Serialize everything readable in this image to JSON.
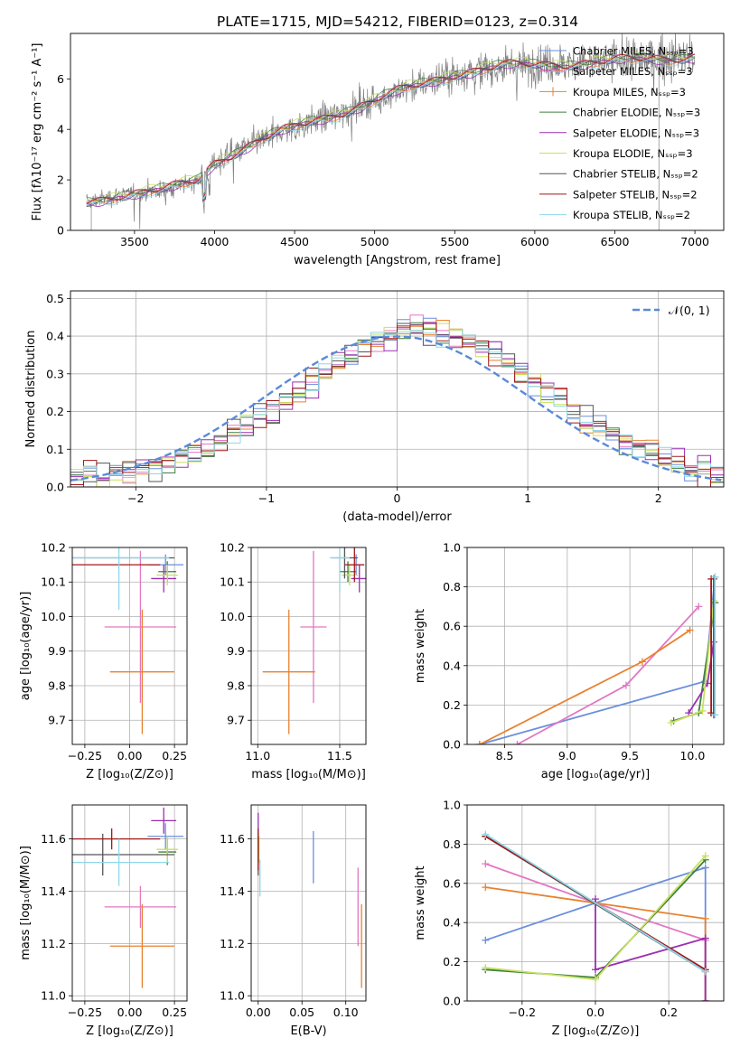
{
  "title": "PLATE=1715, MJD=54212, FIBERID=0123, z=0.314",
  "colors": {
    "chabrier_miles": "#6a8fdc",
    "salpeter_miles": "#e377c2",
    "kroupa_miles": "#e8822f",
    "chabrier_elodie": "#3f7f3f",
    "salpeter_elodie": "#9a2fb0",
    "kroupa_elodie": "#c8e060",
    "chabrier_stelib": "#555555",
    "salpeter_stelib": "#a01818",
    "kroupa_stelib": "#8ed7e8",
    "data": "#808080",
    "normal": "#5b8ad8"
  },
  "chart_data": [
    {
      "type": "line",
      "name": "spectrum",
      "xlabel": "wavelength [Angstrom, rest frame]",
      "ylabel": "Flux [fλ10⁻¹⁷ erg cm⁻² s⁻¹ A⁻¹]",
      "xlim": [
        3100,
        7180
      ],
      "ylim": [
        0,
        7.8
      ],
      "xticks": [
        3500,
        4000,
        4500,
        5000,
        5500,
        6000,
        6500,
        7000
      ],
      "yticks": [
        0,
        2,
        4,
        6
      ],
      "legend_position": "right",
      "legend": [
        {
          "label": "Chabrier MILES, Nₛₛₚ=3",
          "color": "chabrier_miles"
        },
        {
          "label": "Salpeter MILES, Nₛₛₚ=3",
          "color": "salpeter_miles"
        },
        {
          "label": "Kroupa MILES, Nₛₛₚ=3",
          "color": "kroupa_miles"
        },
        {
          "label": "Chabrier ELODIE, Nₛₛₚ=3",
          "color": "chabrier_elodie"
        },
        {
          "label": "Salpeter ELODIE, Nₛₛₚ=3",
          "color": "salpeter_elodie"
        },
        {
          "label": "Kroupa ELODIE, Nₛₛₚ=3",
          "color": "kroupa_elodie"
        },
        {
          "label": "Chabrier STELIB, Nₛₛₚ=2",
          "color": "chabrier_stelib"
        },
        {
          "label": "Salpeter STELIB, Nₛₛₚ=2",
          "color": "salpeter_stelib"
        },
        {
          "label": "Kroupa STELIB, Nₛₛₚ=2",
          "color": "kroupa_stelib"
        }
      ],
      "continuum": [
        [
          3200,
          1.1
        ],
        [
          3400,
          1.4
        ],
        [
          3700,
          1.6
        ],
        [
          3900,
          2.0
        ],
        [
          4000,
          2.7
        ],
        [
          4300,
          3.6
        ],
        [
          4600,
          4.3
        ],
        [
          4900,
          4.9
        ],
        [
          5200,
          5.6
        ],
        [
          5500,
          6.2
        ],
        [
          5800,
          6.5
        ],
        [
          6200,
          6.6
        ],
        [
          6500,
          6.7
        ],
        [
          6800,
          6.8
        ],
        [
          7000,
          6.9
        ]
      ],
      "model_offsets": [
        0,
        0.05,
        -0.05,
        0.08,
        -0.08,
        0.12,
        -0.03,
        0.03,
        -0.12
      ]
    },
    {
      "type": "bar",
      "name": "residual_histogram",
      "xlabel": "(data-model)/error",
      "ylabel": "Normed distribution",
      "xlim": [
        -2.5,
        2.5
      ],
      "ylim": [
        0,
        0.52
      ],
      "xticks": [
        -2,
        -1,
        0,
        1,
        2
      ],
      "yticks": [
        0.0,
        0.1,
        0.2,
        0.3,
        0.4,
        0.5
      ],
      "legend_position": "top-right",
      "legend": [
        {
          "label": "𝒩(0, 1)",
          "color": "normal"
        }
      ],
      "bin_width": 0.1,
      "n_series": 9
    },
    {
      "type": "scatter",
      "name": "age_vs_Z",
      "xlabel": "Z [log₁₀(Z/Z⊙)]",
      "ylabel": "age  [log₁₀(age/yr)]",
      "xlim": [
        -0.32,
        0.32
      ],
      "ylim": [
        9.63,
        10.2
      ],
      "xticks": [
        -0.25,
        0.0,
        0.25
      ],
      "yticks": [
        9.7,
        9.8,
        9.9,
        10.0,
        10.1,
        10.2
      ],
      "points": [
        {
          "color": "chabrier_miles",
          "x": 0.2,
          "xerr": 0.1,
          "y": 10.15,
          "yerr": 0.03
        },
        {
          "color": "salpeter_miles",
          "x": 0.06,
          "xerr": 0.2,
          "y": 9.97,
          "yerr": 0.22
        },
        {
          "color": "kroupa_miles",
          "x": 0.07,
          "xerr": 0.18,
          "y": 9.84,
          "yerr": 0.18
        },
        {
          "color": "chabrier_elodie",
          "x": 0.21,
          "xerr": 0.05,
          "y": 10.13,
          "yerr": 0.03
        },
        {
          "color": "salpeter_elodie",
          "x": 0.19,
          "xerr": 0.07,
          "y": 10.11,
          "yerr": 0.04
        },
        {
          "color": "kroupa_elodie",
          "x": 0.21,
          "xerr": 0.06,
          "y": 10.12,
          "yerr": 0.03
        },
        {
          "color": "chabrier_stelib",
          "x": -0.15,
          "xerr": 0.4,
          "y": 10.17,
          "yerr": 0.0
        },
        {
          "color": "salpeter_stelib",
          "x": -0.1,
          "xerr": 0.27,
          "y": 10.15,
          "yerr": 0.0
        },
        {
          "color": "kroupa_stelib",
          "x": -0.06,
          "xerr": 0.28,
          "y": 10.17,
          "yerr": 0.15
        }
      ]
    },
    {
      "type": "scatter",
      "name": "age_vs_mass",
      "xlabel": "mass [log₁₀(M/M⊙)]",
      "ylabel": "",
      "xlim": [
        10.96,
        11.66
      ],
      "ylim": [
        9.63,
        10.2
      ],
      "xticks": [
        11.0,
        11.5
      ],
      "yticks": [
        9.7,
        9.8,
        9.9,
        10.0,
        10.1,
        10.2
      ],
      "points": [
        {
          "color": "chabrier_miles",
          "x": 11.6,
          "xerr": 0.05,
          "y": 10.15,
          "yerr": 0.03
        },
        {
          "color": "salpeter_miles",
          "x": 11.34,
          "xerr": 0.08,
          "y": 9.97,
          "yerr": 0.22
        },
        {
          "color": "kroupa_miles",
          "x": 11.19,
          "xerr": 0.16,
          "y": 9.84,
          "yerr": 0.18
        },
        {
          "color": "chabrier_elodie",
          "x": 11.55,
          "xerr": 0.05,
          "y": 10.13,
          "yerr": 0.03
        },
        {
          "color": "salpeter_elodie",
          "x": 11.62,
          "xerr": 0.05,
          "y": 10.11,
          "yerr": 0.04
        },
        {
          "color": "kroupa_elodie",
          "x": 11.56,
          "xerr": 0.05,
          "y": 10.12,
          "yerr": 0.03
        },
        {
          "color": "chabrier_stelib",
          "x": 11.53,
          "xerr": 0.08,
          "y": 10.17,
          "yerr": 0.06
        },
        {
          "color": "salpeter_stelib",
          "x": 11.59,
          "xerr": 0.06,
          "y": 10.15,
          "yerr": 0.05
        },
        {
          "color": "kroupa_stelib",
          "x": 11.5,
          "xerr": 0.06,
          "y": 10.17,
          "yerr": 0.1
        }
      ]
    },
    {
      "type": "line",
      "name": "mass_weight_vs_age",
      "xlabel": "age  [log₁₀(age/yr)]",
      "ylabel": "mass weight",
      "xlim": [
        8.2,
        10.25
      ],
      "ylim": [
        0,
        1
      ],
      "xticks": [
        8.5,
        9.0,
        9.5,
        10.0
      ],
      "yticks": [
        0.0,
        0.2,
        0.4,
        0.6,
        0.8,
        1.0
      ],
      "series": [
        {
          "color": "chabrier_miles",
          "x": [
            8.3,
            10.1,
            10.18
          ],
          "y": [
            0.0,
            0.32,
            0.85
          ]
        },
        {
          "color": "salpeter_miles",
          "x": [
            8.6,
            9.47,
            10.05
          ],
          "y": [
            0.0,
            0.3,
            0.7
          ]
        },
        {
          "color": "kroupa_miles",
          "x": [
            8.3,
            9.6,
            9.98
          ],
          "y": [
            0.0,
            0.42,
            0.58
          ]
        },
        {
          "color": "chabrier_elodie",
          "x": [
            9.85,
            10.05,
            10.18
          ],
          "y": [
            0.12,
            0.16,
            0.72
          ]
        },
        {
          "color": "salpeter_elodie",
          "x": [
            9.97,
            10.12,
            10.17
          ],
          "y": [
            0.16,
            0.31,
            0.52
          ]
        },
        {
          "color": "kroupa_elodie",
          "x": [
            9.83,
            10.08,
            10.17
          ],
          "y": [
            0.11,
            0.17,
            0.73
          ]
        },
        {
          "color": "chabrier_stelib",
          "x": [
            10.17,
            10.17
          ],
          "y": [
            0.15,
            0.84
          ]
        },
        {
          "color": "salpeter_stelib",
          "x": [
            10.15,
            10.15
          ],
          "y": [
            0.16,
            0.84
          ]
        },
        {
          "color": "kroupa_stelib",
          "x": [
            10.18,
            10.18
          ],
          "y": [
            0.15,
            0.85
          ]
        }
      ]
    },
    {
      "type": "scatter",
      "name": "mass_vs_Z",
      "xlabel": "Z [log₁₀(Z/Z⊙)]",
      "ylabel": "mass [log₁₀(M/M⊙)]",
      "xlim": [
        -0.32,
        0.32
      ],
      "ylim": [
        10.98,
        11.73
      ],
      "xticks": [
        -0.25,
        0.0,
        0.25
      ],
      "yticks": [
        11.0,
        11.2,
        11.4,
        11.6
      ],
      "points": [
        {
          "color": "chabrier_miles",
          "x": 0.2,
          "xerr": 0.1,
          "y": 11.61,
          "yerr": 0.05
        },
        {
          "color": "salpeter_miles",
          "x": 0.06,
          "xerr": 0.2,
          "y": 11.34,
          "yerr": 0.08
        },
        {
          "color": "kroupa_miles",
          "x": 0.07,
          "xerr": 0.18,
          "y": 11.19,
          "yerr": 0.16
        },
        {
          "color": "chabrier_elodie",
          "x": 0.21,
          "xerr": 0.05,
          "y": 11.55,
          "yerr": 0.05
        },
        {
          "color": "salpeter_elodie",
          "x": 0.19,
          "xerr": 0.07,
          "y": 11.67,
          "yerr": 0.05
        },
        {
          "color": "kroupa_elodie",
          "x": 0.21,
          "xerr": 0.06,
          "y": 11.56,
          "yerr": 0.05
        },
        {
          "color": "chabrier_stelib",
          "x": -0.15,
          "xerr": 0.4,
          "y": 11.54,
          "yerr": 0.08
        },
        {
          "color": "salpeter_stelib",
          "x": -0.1,
          "xerr": 0.27,
          "y": 11.6,
          "yerr": 0.04
        },
        {
          "color": "kroupa_stelib",
          "x": -0.06,
          "xerr": 0.28,
          "y": 11.51,
          "yerr": 0.09
        }
      ]
    },
    {
      "type": "scatter",
      "name": "mass_vs_ebv",
      "xlabel": "E(B-V)",
      "ylabel": "",
      "xlim": [
        -0.008,
        0.123
      ],
      "ylim": [
        10.98,
        11.73
      ],
      "xticks": [
        0.0,
        0.05,
        0.1
      ],
      "yticks": [
        11.0,
        11.2,
        11.4,
        11.6
      ],
      "points": [
        {
          "color": "chabrier_miles",
          "x": 0.063,
          "xerr": 0,
          "y": 11.53,
          "yerr": 0.1
        },
        {
          "color": "salpeter_miles",
          "x": 0.114,
          "xerr": 0,
          "y": 11.34,
          "yerr": 0.15
        },
        {
          "color": "kroupa_miles",
          "x": 0.118,
          "xerr": 0,
          "y": 11.19,
          "yerr": 0.16
        },
        {
          "color": "chabrier_elodie",
          "x": 0.0,
          "xerr": 0,
          "y": 11.55,
          "yerr": 0.05
        },
        {
          "color": "salpeter_elodie",
          "x": 0.0,
          "xerr": 0,
          "y": 11.62,
          "yerr": 0.08
        },
        {
          "color": "kroupa_elodie",
          "x": 0.001,
          "xerr": 0,
          "y": 11.56,
          "yerr": 0.05
        },
        {
          "color": "chabrier_stelib",
          "x": 0.0,
          "xerr": 0,
          "y": 11.54,
          "yerr": 0.08
        },
        {
          "color": "salpeter_stelib",
          "x": 0.0,
          "xerr": 0,
          "y": 11.56,
          "yerr": 0.08
        },
        {
          "color": "kroupa_stelib",
          "x": 0.002,
          "xerr": 0,
          "y": 11.45,
          "yerr": 0.07
        }
      ]
    },
    {
      "type": "line",
      "name": "mass_weight_vs_Z",
      "xlabel": "Z [log₁₀(Z/Z⊙)]",
      "ylabel": "mass weight",
      "xlim": [
        -0.35,
        0.35
      ],
      "ylim": [
        0,
        1
      ],
      "xticks": [
        -0.2,
        0.0,
        0.2
      ],
      "yticks": [
        0.0,
        0.2,
        0.4,
        0.6,
        0.8,
        1.0
      ],
      "series": [
        {
          "color": "chabrier_miles",
          "x": [
            -0.3,
            0.0,
            0.3,
            0.3
          ],
          "y": [
            0.31,
            0.5,
            0.68,
            0.0
          ]
        },
        {
          "color": "salpeter_miles",
          "x": [
            -0.3,
            0.0,
            0.3,
            0.3
          ],
          "y": [
            0.7,
            0.5,
            0.31,
            0.0
          ]
        },
        {
          "color": "kroupa_miles",
          "x": [
            -0.3,
            0.0,
            0.3,
            0.3
          ],
          "y": [
            0.58,
            0.5,
            0.42,
            0.0
          ]
        },
        {
          "color": "chabrier_elodie",
          "x": [
            -0.3,
            0.0,
            0.3
          ],
          "y": [
            0.16,
            0.12,
            0.72
          ]
        },
        {
          "color": "salpeter_elodie",
          "x": [
            0.0,
            0.0,
            0.3,
            0.3
          ],
          "y": [
            0.52,
            0.16,
            0.32,
            0.0
          ]
        },
        {
          "color": "kroupa_elodie",
          "x": [
            -0.3,
            0.0,
            0.3
          ],
          "y": [
            0.17,
            0.11,
            0.74
          ]
        },
        {
          "color": "chabrier_stelib",
          "x": [
            -0.3,
            0.3
          ],
          "y": [
            0.84,
            0.15
          ]
        },
        {
          "color": "salpeter_stelib",
          "x": [
            -0.3,
            0.3
          ],
          "y": [
            0.84,
            0.16
          ]
        },
        {
          "color": "kroupa_stelib",
          "x": [
            -0.3,
            0.3
          ],
          "y": [
            0.85,
            0.15
          ]
        }
      ]
    }
  ]
}
